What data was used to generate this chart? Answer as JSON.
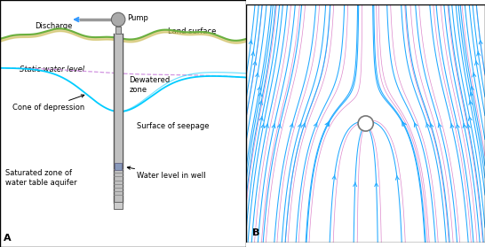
{
  "bg_color": "#ffffff",
  "land_color": "#6ab040",
  "land_fill_color": "#e8e8d0",
  "static_water_color": "#00ccff",
  "dashed_color": "#cc88dd",
  "cone_color": "#00ccff",
  "well_body_color": "#cccccc",
  "well_edge_color": "#666666",
  "pump_color": "#aaaaaa",
  "flow_blue": "#22aaff",
  "flow_pink": "#dd88cc",
  "panel_bg_b": "#f8f8ff",
  "font_size": 6.0,
  "labels": {
    "pump": "Pump",
    "land_surface": "Land surface",
    "discharge": "Discharge",
    "static_water": "Static water level",
    "dewatered": "Dewatered\nzone",
    "cone": "Cone of depression",
    "saturated": "Saturated zone of\nwater table aquifer",
    "surface_seepage": "Surface of seepage",
    "water_level_well": "Water level in well"
  }
}
